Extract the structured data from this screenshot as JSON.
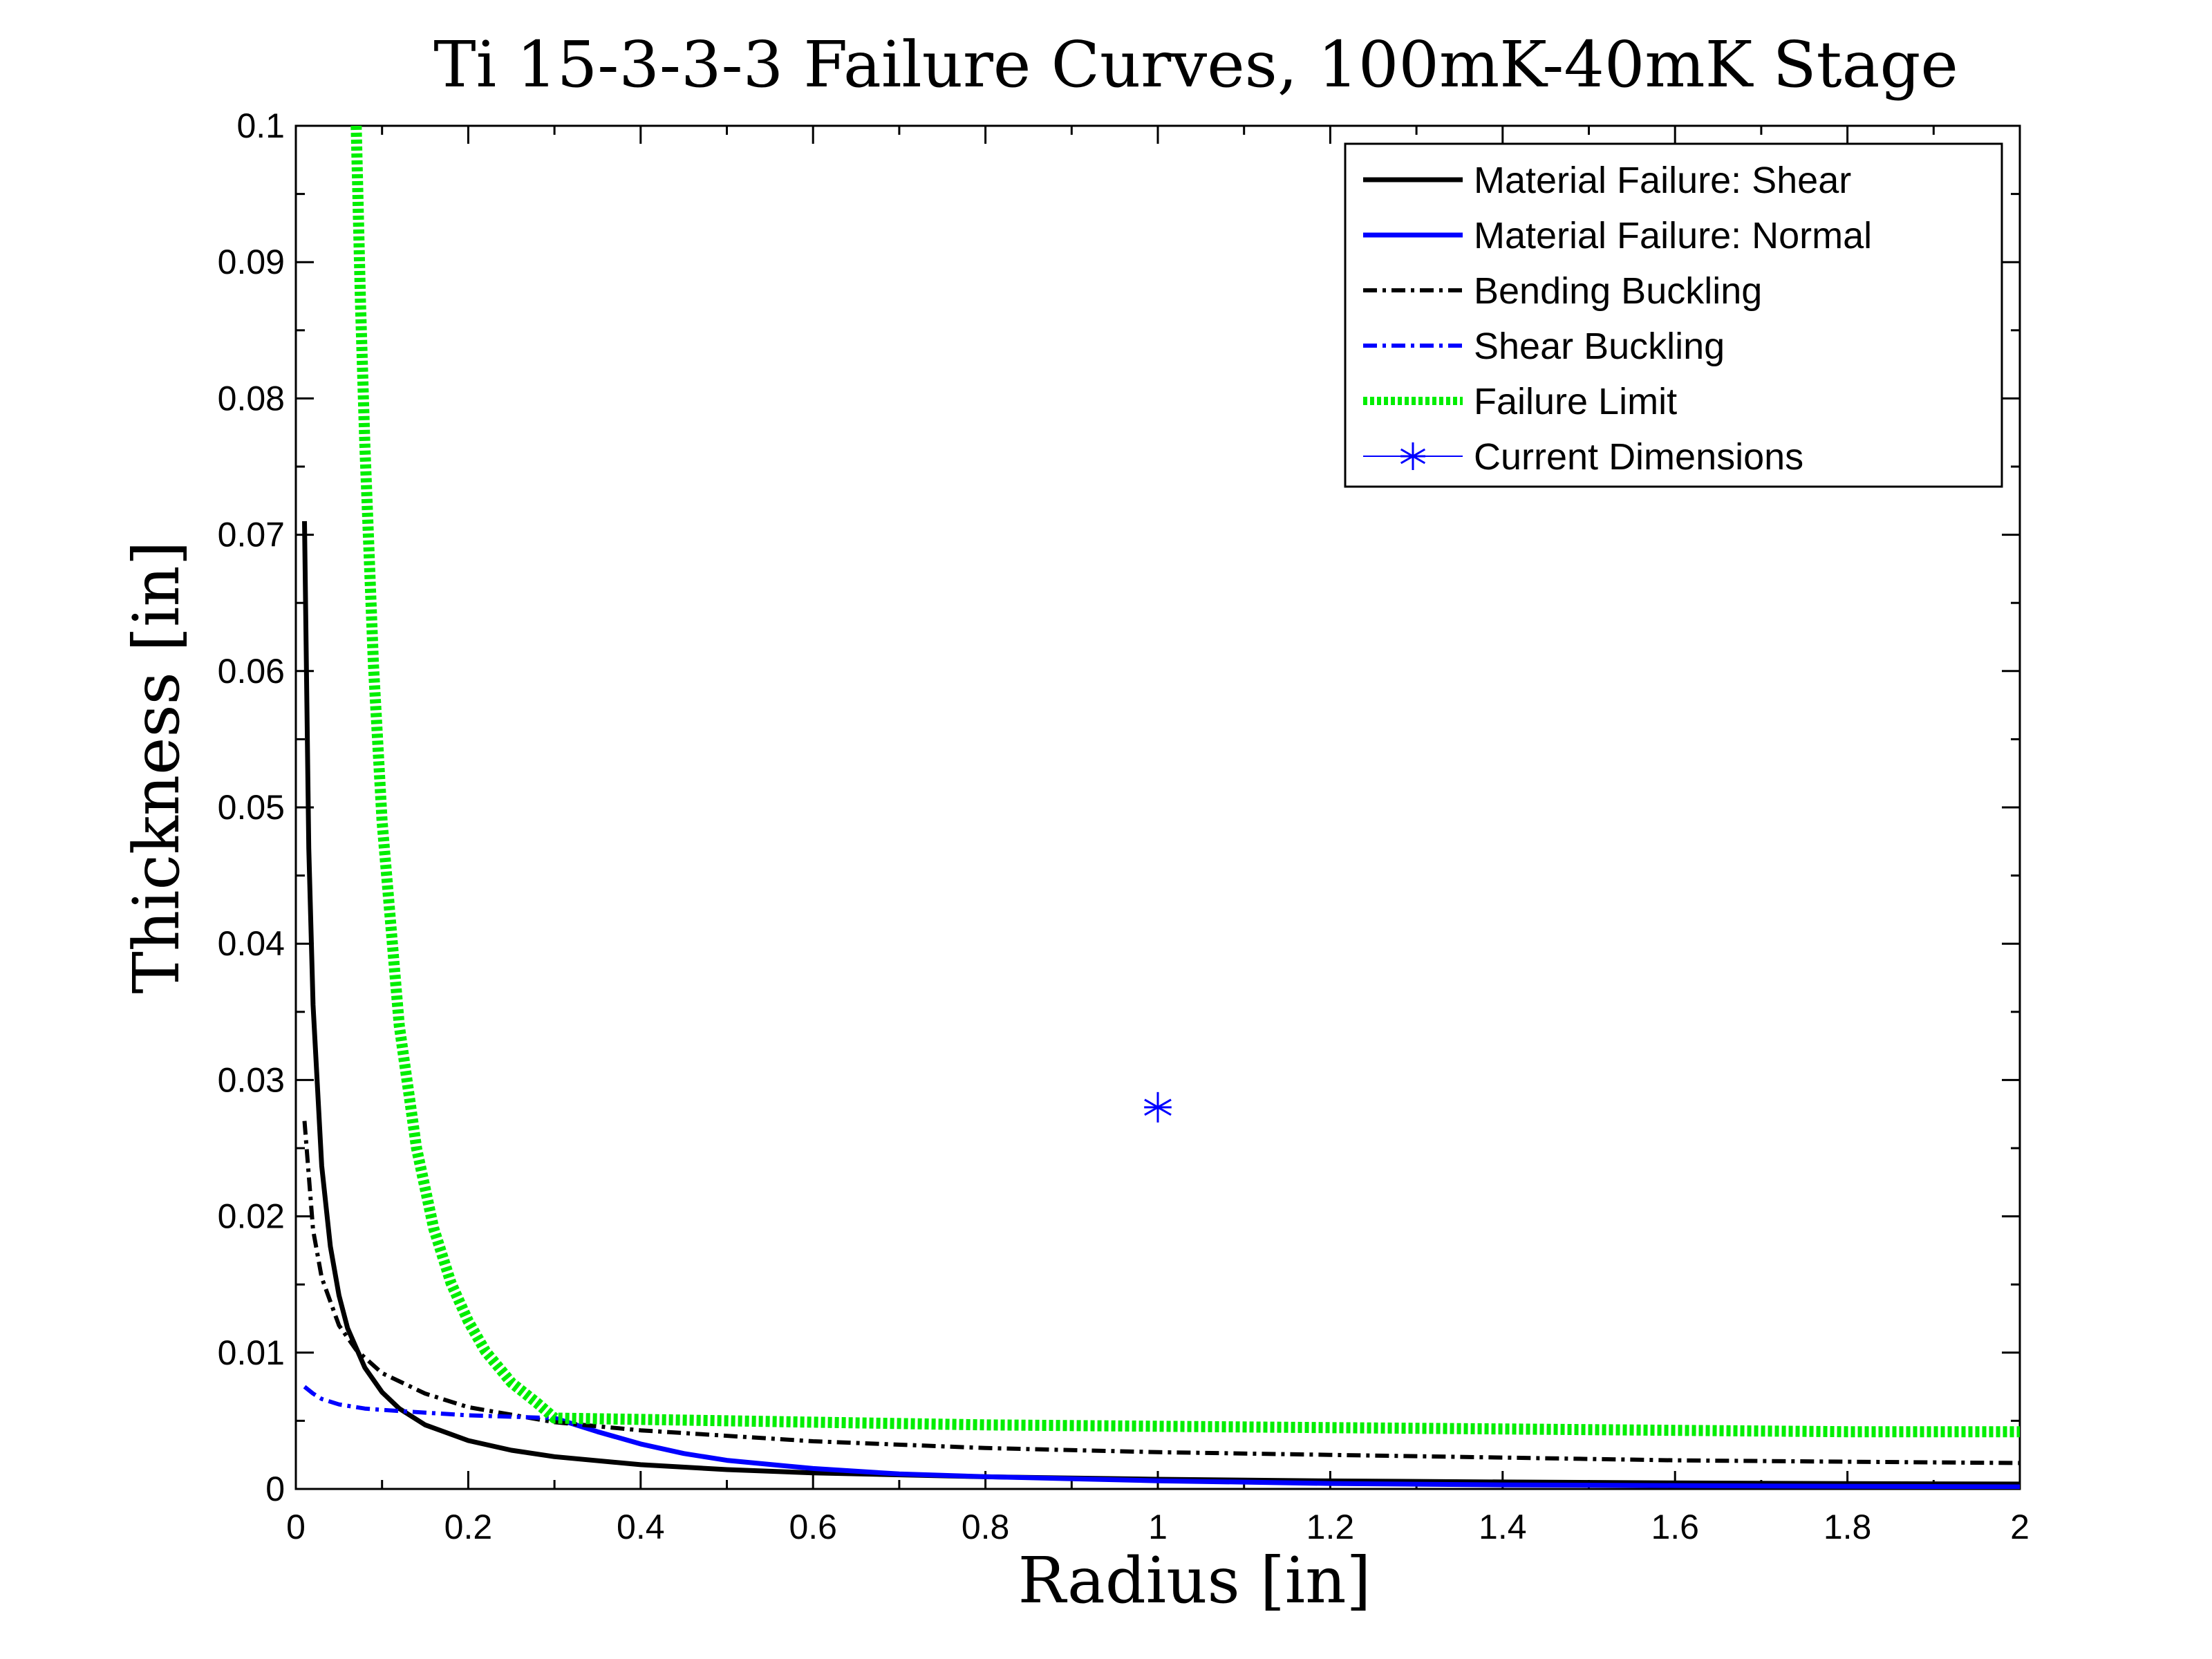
{
  "chart_data": {
    "type": "line",
    "title": "Ti 15-3-3-3 Failure Curves, 100mK-40mK Stage",
    "xlabel": "Radius [in]",
    "ylabel": "Thickness [in]",
    "xlim": [
      0,
      2
    ],
    "ylim": [
      0,
      0.1
    ],
    "xticks": [
      0,
      0.2,
      0.4,
      0.6,
      0.8,
      1,
      1.2,
      1.4,
      1.6,
      1.8,
      2
    ],
    "xtick_labels": [
      "0",
      "0.2",
      "0.4",
      "0.6",
      "0.8",
      "1",
      "1.2",
      "1.4",
      "1.6",
      "1.8",
      "2"
    ],
    "yticks": [
      0,
      0.01,
      0.02,
      0.03,
      0.04,
      0.05,
      0.06,
      0.07,
      0.08,
      0.09,
      0.1
    ],
    "ytick_labels": [
      "0",
      "0.01",
      "0.02",
      "0.03",
      "0.04",
      "0.05",
      "0.06",
      "0.07",
      "0.08",
      "0.09",
      "0.1"
    ],
    "grid": false,
    "legend_position": "top-right",
    "series": [
      {
        "name": "Material Failure: Shear",
        "color": "#000000",
        "style": "solid",
        "x": [
          0.01,
          0.015,
          0.02,
          0.03,
          0.04,
          0.05,
          0.06,
          0.08,
          0.1,
          0.12,
          0.15,
          0.2,
          0.25,
          0.3,
          0.4,
          0.5,
          0.6,
          0.8,
          1.0,
          1.2,
          1.4,
          1.6,
          1.8,
          2.0
        ],
        "y": [
          0.071,
          0.047,
          0.0355,
          0.0237,
          0.0178,
          0.0142,
          0.0118,
          0.0089,
          0.0071,
          0.0059,
          0.0047,
          0.00355,
          0.00284,
          0.00237,
          0.00178,
          0.00142,
          0.00118,
          0.00089,
          0.00071,
          0.00059,
          0.00051,
          0.00044,
          0.00039,
          0.00036
        ]
      },
      {
        "name": "Material Failure: Normal",
        "color": "#0000ff",
        "style": "solid",
        "x": [
          0.3,
          0.35,
          0.4,
          0.45,
          0.5,
          0.6,
          0.7,
          0.8,
          1.0,
          1.2,
          1.4,
          1.6,
          1.8,
          2.0
        ],
        "y": [
          0.0052,
          0.0042,
          0.0033,
          0.0026,
          0.0021,
          0.0015,
          0.0011,
          0.0009,
          0.0006,
          0.0004,
          0.0003,
          0.00025,
          0.0002,
          0.00015
        ]
      },
      {
        "name": "Bending Buckling",
        "color": "#000000",
        "style": "dashdot",
        "x": [
          0.01,
          0.02,
          0.03,
          0.05,
          0.07,
          0.1,
          0.15,
          0.2,
          0.3,
          0.4,
          0.6,
          0.8,
          1.0,
          1.2,
          1.4,
          1.6,
          1.8,
          2.0
        ],
        "y": [
          0.027,
          0.019,
          0.0155,
          0.012,
          0.0102,
          0.0085,
          0.007,
          0.006,
          0.0049,
          0.0043,
          0.0035,
          0.003,
          0.0027,
          0.0025,
          0.0023,
          0.0021,
          0.002,
          0.0019
        ]
      },
      {
        "name": "Shear Buckling",
        "color": "#0000ff",
        "style": "dashdot",
        "x": [
          0.01,
          0.02,
          0.03,
          0.05,
          0.08,
          0.1,
          0.15,
          0.2,
          0.25,
          0.3
        ],
        "y": [
          0.0075,
          0.007,
          0.0066,
          0.0062,
          0.0059,
          0.0058,
          0.0056,
          0.0054,
          0.0053,
          0.0052
        ]
      },
      {
        "name": "Failure Limit",
        "color": "#00ee00",
        "style": "dotted-thick",
        "x": [
          0.07,
          0.075,
          0.08,
          0.09,
          0.1,
          0.12,
          0.14,
          0.16,
          0.18,
          0.2,
          0.22,
          0.25,
          0.28,
          0.3,
          0.4,
          0.6,
          0.8,
          1.0,
          1.2,
          1.4,
          1.6,
          1.8,
          2.0
        ],
        "y": [
          0.1,
          0.087,
          0.0766,
          0.0605,
          0.049,
          0.034,
          0.025,
          0.0191,
          0.0151,
          0.0123,
          0.0101,
          0.0078,
          0.0063,
          0.0052,
          0.0051,
          0.0049,
          0.0047,
          0.0046,
          0.0045,
          0.0044,
          0.0043,
          0.0042,
          0.0042
        ]
      },
      {
        "name": "Current Dimensions",
        "color": "#0000ff",
        "style": "marker-asterisk",
        "x": [
          1.0
        ],
        "y": [
          0.028
        ]
      }
    ]
  }
}
